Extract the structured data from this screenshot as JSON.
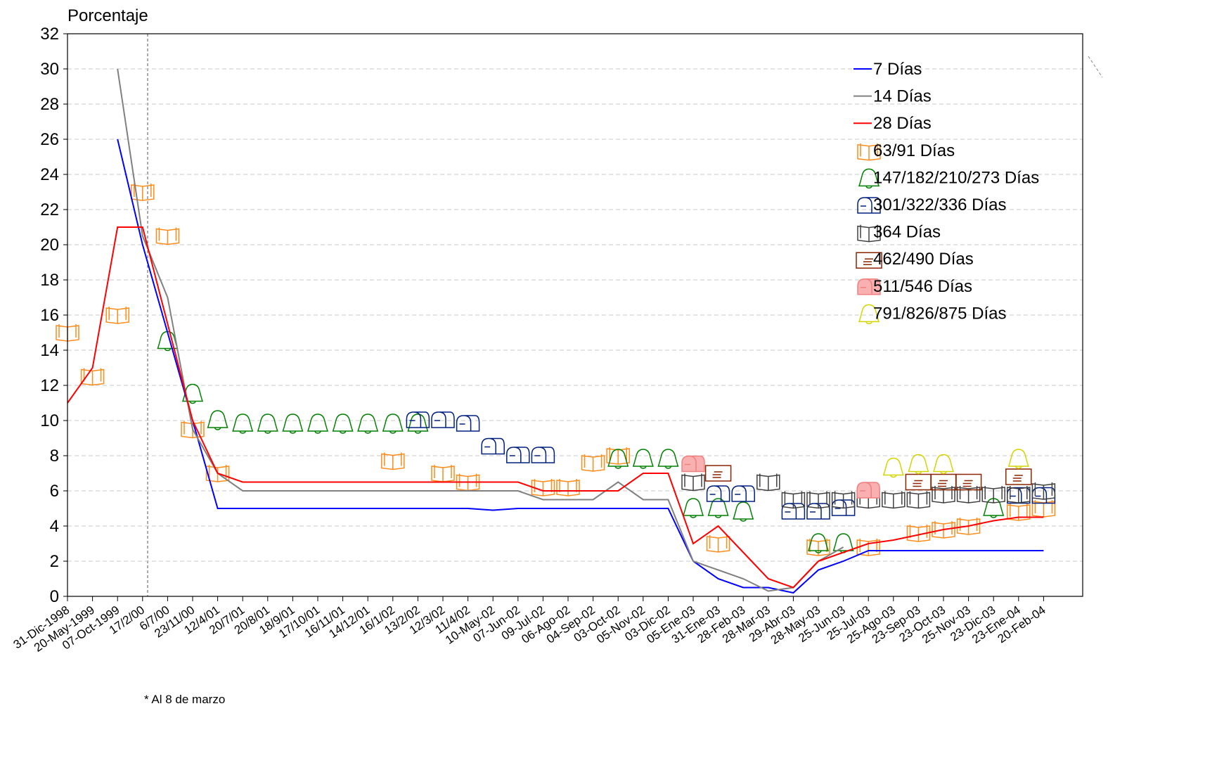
{
  "chart_data": {
    "type": "line",
    "title": "Porcentaje",
    "footnote": "* Al  8  de marzo",
    "categories": [
      "31-Dic-1998",
      "20-May-1999",
      "07-Oct-1999",
      "17/2/00",
      "6/7/00",
      "23/11/00",
      "12/4/01",
      "20/7/01",
      "20/8/01",
      "18/9/01",
      "17/10/01",
      "16/11/01",
      "14/12/01",
      "16/1/02",
      "13/2/02",
      "12/3/02",
      "11/4/02",
      "10-May-02",
      "07-Jun-02",
      "09-Jul-02",
      "06-Ago-02",
      "04-Sep-02",
      "03-Oct-02",
      "05-Nov-02",
      "03-Dic-02",
      "05-Ene-03",
      "31-Ene-03",
      "28-Feb-03",
      "28-Mar-03",
      "29-Abr-03",
      "28-May-03",
      "25-Jun-03",
      "25-Jul-03",
      "25-Ago-03",
      "23-Sep-03",
      "23-Oct-03",
      "25-Nov-03",
      "23-Dic-03",
      "23-Ene-04",
      "20-Feb-04"
    ],
    "ylim": [
      0,
      32
    ],
    "yticks": [
      0,
      2,
      4,
      6,
      8,
      10,
      12,
      14,
      16,
      18,
      20,
      22,
      24,
      26,
      28,
      30,
      32
    ],
    "grid": true,
    "series": [
      {
        "name": "7 Días",
        "color": "#0000ff",
        "marker": "line",
        "values": [
          null,
          null,
          26,
          20,
          15,
          10,
          5,
          5,
          5,
          5,
          5,
          5,
          5,
          5,
          5,
          5,
          5,
          4.9,
          5,
          5,
          5,
          5,
          5,
          5,
          5,
          2,
          1,
          0.5,
          0.5,
          0.2,
          1.5,
          2,
          2.6,
          2.6,
          2.6,
          2.6,
          2.6,
          2.6,
          2.6,
          2.6
        ]
      },
      {
        "name": "14 Días",
        "color": "#808080",
        "marker": "line",
        "values": [
          null,
          null,
          30,
          20.5,
          17,
          9.5,
          7,
          6,
          6,
          6,
          6,
          6,
          6,
          6,
          6,
          6,
          6,
          6,
          6,
          5.5,
          5.5,
          5.5,
          6.5,
          5.5,
          5.5,
          2,
          1.5,
          1,
          0.3,
          0.5,
          2,
          2.8,
          null,
          null,
          null,
          null,
          null,
          null,
          null,
          null
        ]
      },
      {
        "name": "28 Días",
        "color": "#ff0000",
        "marker": "line",
        "values": [
          11,
          13,
          21,
          21,
          15.5,
          10,
          7,
          6.5,
          6.5,
          6.5,
          6.5,
          6.5,
          6.5,
          6.5,
          6.5,
          6.5,
          6.5,
          6.5,
          6.5,
          6,
          6,
          6,
          6,
          7,
          7,
          3,
          4,
          2.5,
          1,
          0.5,
          2,
          2.5,
          3,
          3.2,
          3.5,
          3.8,
          4,
          4.3,
          4.5,
          4.5
        ]
      },
      {
        "name": "63/91 Días",
        "color": "#ff8c1a",
        "marker": "book",
        "values": [
          15,
          12.5,
          16,
          23,
          20.5,
          9.5,
          7,
          null,
          null,
          null,
          null,
          null,
          null,
          7.7,
          null,
          7,
          6.5,
          null,
          null,
          6.2,
          6.2,
          7.6,
          8,
          null,
          null,
          null,
          3,
          null,
          null,
          null,
          2.8,
          null,
          2.8,
          null,
          3.6,
          3.8,
          4,
          null,
          4.8,
          5
        ]
      },
      {
        "name": "147/182/210/273 Días",
        "color": "#008000",
        "marker": "bell",
        "values": [
          null,
          null,
          null,
          null,
          14.5,
          11.5,
          10,
          9.8,
          9.8,
          9.8,
          9.8,
          9.8,
          9.8,
          9.8,
          9.8,
          null,
          null,
          null,
          null,
          null,
          null,
          null,
          7.8,
          7.8,
          7.8,
          5,
          5,
          4.8,
          null,
          null,
          3,
          3,
          null,
          null,
          null,
          null,
          null,
          5,
          null,
          null
        ]
      },
      {
        "name": "301/322/336 Días",
        "color": "#002080",
        "marker": "mailbox",
        "values": [
          null,
          null,
          null,
          null,
          null,
          null,
          null,
          null,
          null,
          null,
          null,
          null,
          null,
          null,
          10,
          10,
          9.8,
          8.5,
          8,
          8,
          null,
          null,
          null,
          null,
          null,
          null,
          5.8,
          5.8,
          null,
          4.8,
          4.8,
          5,
          null,
          null,
          null,
          null,
          null,
          null,
          5.7,
          5.7
        ]
      },
      {
        "name": "364 Días",
        "color": "#404040",
        "marker": "book",
        "values": [
          null,
          null,
          null,
          null,
          null,
          null,
          null,
          null,
          null,
          null,
          null,
          null,
          null,
          null,
          null,
          null,
          null,
          null,
          null,
          null,
          null,
          null,
          null,
          null,
          null,
          6.5,
          null,
          null,
          6.5,
          5.5,
          5.5,
          5.5,
          5.5,
          5.5,
          5.5,
          5.8,
          5.8,
          5.8,
          5.8,
          6
        ]
      },
      {
        "name": "462/490 Días",
        "color": "#8b2500",
        "marker": "letter",
        "values": [
          null,
          null,
          null,
          null,
          null,
          null,
          null,
          null,
          null,
          null,
          null,
          null,
          null,
          null,
          null,
          null,
          null,
          null,
          null,
          null,
          null,
          null,
          null,
          null,
          null,
          null,
          7,
          null,
          null,
          null,
          null,
          null,
          null,
          null,
          6.5,
          6.5,
          6.5,
          null,
          6.8,
          null
        ]
      },
      {
        "name": "511/546 Días",
        "color": "#f08080",
        "marker": "mailbox",
        "values": [
          null,
          null,
          null,
          null,
          null,
          null,
          null,
          null,
          null,
          null,
          null,
          null,
          null,
          null,
          null,
          null,
          null,
          null,
          null,
          null,
          null,
          null,
          null,
          null,
          null,
          7.5,
          null,
          null,
          null,
          null,
          null,
          null,
          6,
          null,
          null,
          null,
          null,
          null,
          null,
          null
        ]
      },
      {
        "name": "791/826/875 Días",
        "color": "#d4d400",
        "marker": "bell",
        "values": [
          null,
          null,
          null,
          null,
          null,
          null,
          null,
          null,
          null,
          null,
          null,
          null,
          null,
          null,
          null,
          null,
          null,
          null,
          null,
          null,
          null,
          null,
          null,
          null,
          null,
          null,
          null,
          null,
          null,
          null,
          null,
          null,
          null,
          7.3,
          7.5,
          7.5,
          null,
          null,
          7.8,
          null
        ]
      }
    ]
  }
}
